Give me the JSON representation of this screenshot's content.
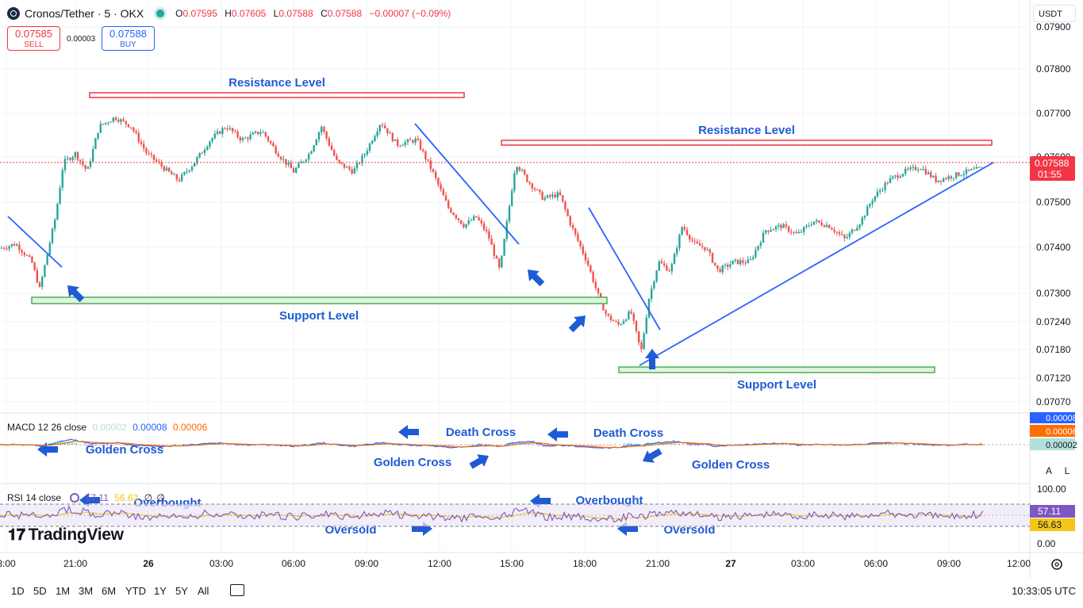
{
  "header": {
    "symbol": "Cronos/Tether · 5 · OKX",
    "ohlc": {
      "o_label": "O",
      "o": "0.07595",
      "h_label": "H",
      "h": "0.07605",
      "l_label": "L",
      "l": "0.07588",
      "c_label": "C",
      "c": "0.07588",
      "change": "−0.00007 (−0.09%)"
    },
    "sell_price": "0.07585",
    "sell_label": "SELL",
    "spread": "0.00003",
    "buy_price": "0.07588",
    "buy_label": "BUY",
    "currency": "USDT"
  },
  "price_axis": {
    "labels": [
      "0.07900",
      "0.07800",
      "0.07700",
      "0.07600",
      "0.07500",
      "0.07400",
      "0.07300",
      "0.07240",
      "0.07180",
      "0.07120",
      "0.07070"
    ],
    "last_price": "0.07588",
    "countdown": "01:55",
    "last_price_color": "#f23645"
  },
  "time_axis": {
    "labels": [
      "8:00",
      "21:00",
      "26",
      "03:00",
      "06:00",
      "09:00",
      "12:00",
      "15:00",
      "18:00",
      "21:00",
      "27",
      "03:00",
      "06:00",
      "09:00",
      "12:00"
    ]
  },
  "annotations": {
    "resistance_1": "Resistance Level",
    "resistance_2": "Resistance Level",
    "support_1": "Support Level",
    "support_2": "Support Level",
    "golden_cross_1": "Golden Cross",
    "golden_cross_2": "Golden Cross",
    "golden_cross_3": "Golden Cross",
    "death_cross_1": "Death Cross",
    "death_cross_2": "Death Cross",
    "overbought_1": "Overbought",
    "overbought_2": "Overbought",
    "oversold_1": "Oversold",
    "oversold_2": "Oversold",
    "line_color": "#2962ff",
    "text_color": "#1e5bd6",
    "resistance_color": "#f23645",
    "support_color": "#4caf50"
  },
  "macd": {
    "label": "MACD 12 26 close",
    "v1": "0.00002",
    "v2": "0.00008",
    "v3": "0.00006",
    "axis_values": [
      "0.00008",
      "0.00006",
      "0.00002"
    ],
    "colors": {
      "macd": "#2962ff",
      "signal": "#ff6d00",
      "hist": "#26a69a"
    }
  },
  "rsi": {
    "label": "RSI 14 close",
    "v1": "57.11",
    "v2": "56.63",
    "v3": "∅",
    "v4": "∅",
    "axis_values": [
      "100.00",
      "57.11",
      "56.63",
      "0.00"
    ],
    "colors": {
      "rsi": "#7e57c2",
      "ma": "#f5c518"
    }
  },
  "buttons": {
    "a": "A",
    "l": "L"
  },
  "logo": "TradingView",
  "ranges": [
    "1D",
    "5D",
    "1M",
    "3M",
    "6M",
    "YTD",
    "1Y",
    "5Y",
    "All"
  ],
  "clock": "10:33:05 UTC",
  "chart_data": {
    "type": "candlestick",
    "title": "Cronos/Tether · 5 · OKX",
    "ylim": [
      0.0706,
      0.0792
    ],
    "close_path": [
      [
        0,
        0.0741
      ],
      [
        20,
        0.0742
      ],
      [
        40,
        0.0738
      ],
      [
        50,
        0.0732
      ],
      [
        60,
        0.074
      ],
      [
        70,
        0.0748
      ],
      [
        80,
        0.076
      ],
      [
        95,
        0.0762
      ],
      [
        110,
        0.0758
      ],
      [
        125,
        0.0768
      ],
      [
        145,
        0.077
      ],
      [
        165,
        0.0768
      ],
      [
        185,
        0.0762
      ],
      [
        205,
        0.0759
      ],
      [
        225,
        0.0756
      ],
      [
        245,
        0.076
      ],
      [
        265,
        0.0765
      ],
      [
        285,
        0.0768
      ],
      [
        305,
        0.0765
      ],
      [
        330,
        0.0767
      ],
      [
        350,
        0.0762
      ],
      [
        370,
        0.0758
      ],
      [
        390,
        0.0762
      ],
      [
        405,
        0.0768
      ],
      [
        425,
        0.076
      ],
      [
        445,
        0.0758
      ],
      [
        460,
        0.0762
      ],
      [
        480,
        0.0769
      ],
      [
        500,
        0.0764
      ],
      [
        525,
        0.0765
      ],
      [
        545,
        0.0758
      ],
      [
        565,
        0.075
      ],
      [
        585,
        0.0746
      ],
      [
        600,
        0.0748
      ],
      [
        615,
        0.0744
      ],
      [
        630,
        0.0736
      ],
      [
        640,
        0.0748
      ],
      [
        650,
        0.076
      ],
      [
        665,
        0.0756
      ],
      [
        685,
        0.0752
      ],
      [
        705,
        0.0753
      ],
      [
        720,
        0.0746
      ],
      [
        740,
        0.0738
      ],
      [
        755,
        0.073
      ],
      [
        765,
        0.0726
      ],
      [
        780,
        0.0724
      ],
      [
        795,
        0.0727
      ],
      [
        808,
        0.0718
      ],
      [
        818,
        0.073
      ],
      [
        830,
        0.0738
      ],
      [
        845,
        0.0736
      ],
      [
        860,
        0.0746
      ],
      [
        875,
        0.0742
      ],
      [
        890,
        0.0741
      ],
      [
        905,
        0.0736
      ],
      [
        925,
        0.0738
      ],
      [
        945,
        0.0738
      ],
      [
        965,
        0.0745
      ],
      [
        985,
        0.0746
      ],
      [
        1005,
        0.0744
      ],
      [
        1025,
        0.0747
      ],
      [
        1045,
        0.0746
      ],
      [
        1065,
        0.0743
      ],
      [
        1085,
        0.0747
      ],
      [
        1100,
        0.0752
      ],
      [
        1120,
        0.0756
      ],
      [
        1140,
        0.0758
      ],
      [
        1160,
        0.0759
      ],
      [
        1180,
        0.0756
      ],
      [
        1200,
        0.0757
      ],
      [
        1220,
        0.0758
      ],
      [
        1240,
        0.07588
      ]
    ]
  }
}
